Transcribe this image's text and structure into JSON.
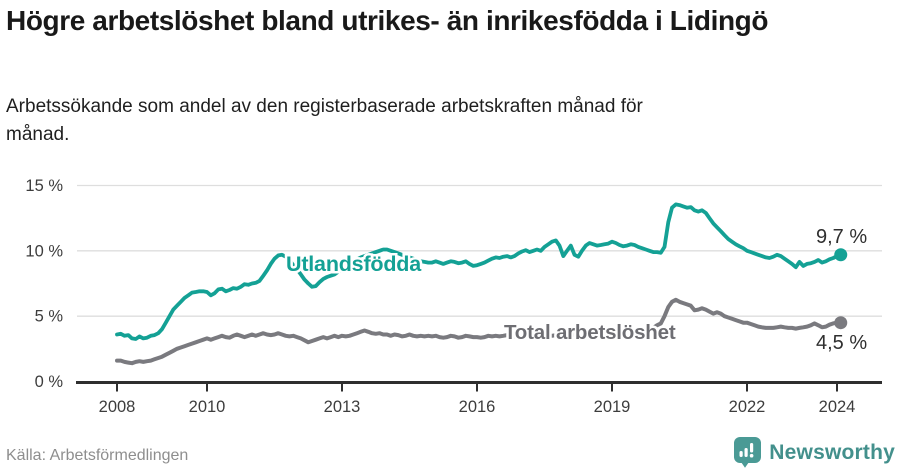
{
  "header": {
    "title": "Högre arbetslöshet bland utrikes- än inrikesfödda i Lidingö",
    "subtitle": "Arbetssökande som andel av den registerbaserade arbetskraften månad för månad."
  },
  "footer": {
    "source": "Källa: Arbetsförmedlingen",
    "brand": "Newsworthy"
  },
  "colors": {
    "accent_teal": "#14a195",
    "line_gray": "#7a7a7f",
    "label_gray": "#6e6e73",
    "end_label": "#2f2f2f",
    "grid": "#dedede",
    "axis": "#2f2f2f",
    "tick_text": "#3d3d3d",
    "logo_teal": "#4a9a95"
  },
  "chart_data": {
    "type": "line",
    "title": "Högre arbetslöshet bland utrikes- än inrikesfödda i Lidingö",
    "subtitle": "Arbetssökande som andel av den registerbaserade arbetskraften månad för månad.",
    "x_unit": "month",
    "x_start_year": 2008,
    "x_end_label": "2024",
    "x_ticks": [
      2008,
      2010,
      2013,
      2016,
      2019,
      2022,
      2024
    ],
    "y_ticks": [
      {
        "value": 0,
        "label": "0 %"
      },
      {
        "value": 5,
        "label": "5 %"
      },
      {
        "value": 10,
        "label": "10 %"
      },
      {
        "value": 15,
        "label": "15 %"
      }
    ],
    "ylim": [
      0,
      15
    ],
    "grid": true,
    "legend_position": "inline-annotations",
    "series": [
      {
        "name": "Utlandsfödda",
        "color": "#14a195",
        "end_label": "9,7 %",
        "end_value": 9.7,
        "values": [
          3.6,
          3.65,
          3.5,
          3.55,
          3.3,
          3.25,
          3.45,
          3.3,
          3.35,
          3.5,
          3.55,
          3.7,
          4.0,
          4.5,
          5.0,
          5.5,
          5.8,
          6.1,
          6.4,
          6.6,
          6.8,
          6.85,
          6.9,
          6.9,
          6.85,
          6.6,
          6.75,
          7.05,
          7.1,
          6.9,
          7.0,
          7.15,
          7.1,
          7.25,
          7.45,
          7.4,
          7.5,
          7.55,
          7.7,
          8.1,
          8.5,
          9.0,
          9.4,
          9.65,
          9.7,
          9.55,
          9.3,
          8.9,
          8.6,
          8.2,
          7.8,
          7.5,
          7.25,
          7.3,
          7.6,
          7.85,
          8.0,
          8.1,
          8.2,
          8.4,
          8.6,
          8.8,
          9.0,
          9.2,
          9.35,
          9.5,
          9.6,
          9.7,
          9.8,
          9.9,
          10.0,
          10.1,
          10.1,
          10.0,
          9.9,
          9.8,
          9.7,
          9.6,
          9.5,
          9.4,
          9.3,
          9.2,
          9.15,
          9.1,
          9.1,
          9.2,
          9.1,
          9.0,
          9.1,
          9.2,
          9.15,
          9.05,
          9.1,
          9.2,
          9.0,
          8.85,
          8.9,
          9.0,
          9.1,
          9.25,
          9.4,
          9.5,
          9.45,
          9.55,
          9.6,
          9.5,
          9.6,
          9.8,
          9.95,
          10.05,
          9.9,
          10.0,
          10.1,
          10.0,
          10.3,
          10.5,
          10.7,
          10.8,
          10.4,
          9.6,
          10.0,
          10.4,
          9.7,
          9.55,
          10.0,
          10.4,
          10.6,
          10.5,
          10.4,
          10.45,
          10.5,
          10.55,
          10.7,
          10.6,
          10.45,
          10.35,
          10.4,
          10.5,
          10.45,
          10.3,
          10.2,
          10.1,
          10.0,
          9.9,
          9.9,
          9.85,
          10.3,
          12.2,
          13.3,
          13.55,
          13.5,
          13.4,
          13.3,
          13.35,
          13.1,
          13.0,
          13.1,
          12.9,
          12.5,
          12.1,
          11.8,
          11.5,
          11.2,
          10.9,
          10.7,
          10.5,
          10.35,
          10.2,
          10.0,
          9.9,
          9.8,
          9.7,
          9.6,
          9.5,
          9.45,
          9.55,
          9.7,
          9.6,
          9.4,
          9.2,
          9.0,
          8.75,
          9.15,
          8.85,
          9.0,
          9.05,
          9.15,
          9.3,
          9.1,
          9.2,
          9.35,
          9.45,
          9.6,
          9.7
        ]
      },
      {
        "name": "Total arbetslöshet",
        "color": "#7a7a7f",
        "end_label": "4,5 %",
        "end_value": 4.5,
        "values": [
          1.6,
          1.6,
          1.5,
          1.45,
          1.4,
          1.5,
          1.55,
          1.5,
          1.55,
          1.6,
          1.7,
          1.8,
          1.9,
          2.05,
          2.2,
          2.35,
          2.5,
          2.6,
          2.7,
          2.8,
          2.9,
          3.0,
          3.1,
          3.2,
          3.3,
          3.2,
          3.3,
          3.4,
          3.5,
          3.4,
          3.35,
          3.5,
          3.6,
          3.5,
          3.4,
          3.5,
          3.6,
          3.5,
          3.6,
          3.7,
          3.6,
          3.55,
          3.6,
          3.7,
          3.6,
          3.5,
          3.45,
          3.5,
          3.4,
          3.3,
          3.15,
          3.0,
          3.1,
          3.2,
          3.3,
          3.4,
          3.3,
          3.4,
          3.5,
          3.4,
          3.5,
          3.45,
          3.5,
          3.6,
          3.7,
          3.8,
          3.9,
          3.8,
          3.7,
          3.65,
          3.7,
          3.6,
          3.6,
          3.5,
          3.6,
          3.55,
          3.45,
          3.5,
          3.6,
          3.5,
          3.45,
          3.5,
          3.45,
          3.5,
          3.45,
          3.5,
          3.4,
          3.35,
          3.4,
          3.5,
          3.45,
          3.35,
          3.4,
          3.5,
          3.45,
          3.4,
          3.4,
          3.35,
          3.4,
          3.5,
          3.45,
          3.5,
          3.45,
          3.5,
          3.55,
          3.5,
          3.45,
          3.5,
          3.5,
          3.55,
          3.5,
          3.55,
          3.6,
          3.55,
          3.5,
          3.55,
          3.5,
          3.55,
          3.6,
          3.55,
          3.6,
          3.55,
          3.6,
          3.65,
          3.6,
          3.65,
          3.6,
          3.55,
          3.6,
          3.65,
          3.6,
          3.65,
          3.7,
          3.65,
          3.7,
          3.75,
          3.7,
          3.75,
          3.8,
          3.85,
          3.9,
          3.95,
          4.0,
          4.1,
          4.3,
          4.45,
          5.0,
          5.7,
          6.1,
          6.25,
          6.1,
          6.0,
          5.9,
          5.8,
          5.45,
          5.5,
          5.6,
          5.5,
          5.35,
          5.2,
          5.3,
          5.2,
          5.0,
          4.9,
          4.8,
          4.7,
          4.6,
          4.5,
          4.5,
          4.4,
          4.3,
          4.2,
          4.15,
          4.1,
          4.1,
          4.1,
          4.15,
          4.2,
          4.15,
          4.1,
          4.1,
          4.05,
          4.1,
          4.15,
          4.2,
          4.3,
          4.45,
          4.3,
          4.15,
          4.2,
          4.35,
          4.45,
          4.5,
          4.5
        ]
      }
    ]
  }
}
